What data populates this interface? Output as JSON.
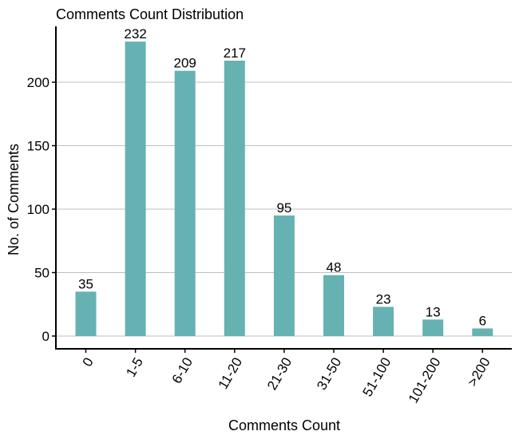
{
  "chart_data": {
    "type": "bar",
    "title": "Comments Count Distribution",
    "xlabel": "Comments Count",
    "ylabel": "No. of Comments",
    "categories": [
      "0",
      "1-5",
      "6-10",
      "11-20",
      "21-30",
      "31-50",
      "51-100",
      "101-200",
      ">200"
    ],
    "values": [
      35,
      232,
      209,
      217,
      95,
      48,
      23,
      13,
      6
    ],
    "ylim": [
      0,
      240
    ],
    "yticks": [
      0,
      50,
      100,
      150,
      200
    ],
    "grid": true,
    "legend": "none",
    "colors": {
      "bar": "#66b2b2",
      "grid": "#bfbfbf",
      "axis": "#000000"
    }
  }
}
